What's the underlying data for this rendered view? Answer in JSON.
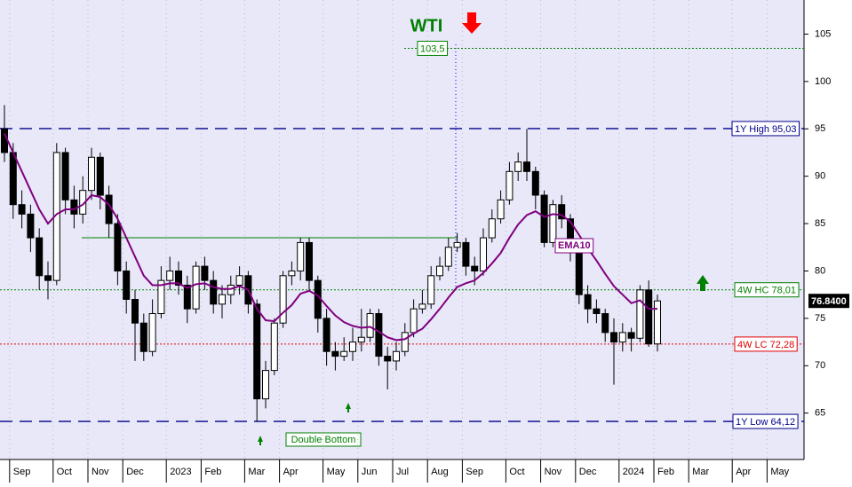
{
  "chart_data": {
    "type": "candlestick",
    "title": "WTI",
    "categories": [
      null,
      "Sep",
      null,
      null,
      null,
      null,
      "Oct",
      null,
      null,
      null,
      "Nov",
      null,
      null,
      null,
      "Dec",
      null,
      null,
      null,
      null,
      "2023",
      null,
      null,
      null,
      "Feb",
      null,
      null,
      null,
      null,
      "Mar",
      null,
      null,
      null,
      "Apr",
      null,
      null,
      null,
      null,
      "May",
      null,
      null,
      null,
      "Jun",
      null,
      null,
      null,
      "Jul",
      null,
      null,
      null,
      "Aug",
      null,
      null,
      null,
      "Sep",
      null,
      null,
      null,
      null,
      "Oct",
      null,
      null,
      null,
      "Nov",
      null,
      null,
      null,
      "Dec",
      null,
      null,
      null,
      null,
      "2024",
      null,
      null,
      null,
      "Feb",
      null,
      null,
      null,
      "Mar",
      null,
      null,
      null,
      null,
      "Apr",
      null,
      null,
      null,
      "May",
      null,
      null,
      null
    ],
    "open": [
      95.0,
      92.5,
      87.0,
      86.0,
      83.5,
      79.5,
      79.0,
      92.5,
      87.5,
      86.0,
      88.5,
      92.0,
      88.0,
      85.0,
      80.0,
      77.0,
      74.5,
      71.5,
      75.5,
      79.0,
      80.0,
      78.5,
      76.0,
      80.5,
      79.0,
      76.5,
      77.5,
      78.5,
      79.5,
      76.5,
      66.5,
      69.5,
      74.5,
      79.5,
      80.0,
      83.0,
      79.0,
      75.0,
      71.5,
      71.0,
      71.5,
      72.5,
      73.0,
      75.5,
      71.0,
      70.5,
      71.5,
      73.5,
      76.0,
      76.5,
      79.5,
      80.5,
      82.5,
      83.0,
      80.5,
      80.0,
      83.5,
      85.5,
      87.5,
      90.5,
      91.5,
      90.5,
      88.0,
      83.0,
      87.0,
      85.5,
      82.0,
      77.5,
      76.0,
      75.5,
      73.5,
      72.5,
      73.5,
      72.9,
      78.0,
      72.3,
      null,
      null,
      null,
      null,
      null,
      null,
      null,
      null,
      null,
      null,
      null,
      null,
      null,
      null,
      null,
      null
    ],
    "high": [
      97.5,
      93.5,
      88.5,
      87.0,
      84.5,
      81.0,
      93.5,
      93.0,
      89.0,
      90.0,
      93.0,
      92.5,
      89.0,
      86.0,
      81.0,
      78.0,
      75.5,
      77.0,
      80.5,
      81.5,
      81.0,
      79.5,
      81.0,
      81.5,
      80.0,
      78.5,
      79.5,
      80.5,
      80.0,
      77.0,
      70.5,
      75.0,
      80.0,
      81.0,
      83.5,
      83.5,
      79.5,
      76.0,
      72.5,
      73.0,
      74.0,
      76.0,
      76.0,
      76.0,
      72.0,
      72.5,
      74.5,
      77.0,
      78.0,
      80.5,
      81.5,
      83.5,
      84.0,
      83.5,
      81.5,
      84.5,
      86.5,
      88.5,
      91.5,
      92.5,
      95.0,
      91.0,
      88.5,
      87.5,
      88.0,
      86.0,
      82.5,
      78.5,
      77.0,
      76.0,
      75.0,
      74.5,
      74.0,
      78.5,
      79.0,
      77.5,
      null,
      null,
      null,
      null,
      null,
      null,
      null,
      null,
      null,
      null,
      null,
      null,
      null,
      null,
      null,
      null
    ],
    "low": [
      91.5,
      85.5,
      84.5,
      82.0,
      78.0,
      77.0,
      78.5,
      86.0,
      84.5,
      85.0,
      87.5,
      86.5,
      83.5,
      78.5,
      75.5,
      70.5,
      70.5,
      71.0,
      75.0,
      78.0,
      77.5,
      74.5,
      75.5,
      78.0,
      75.5,
      75.0,
      76.5,
      77.5,
      75.5,
      64.1,
      65.5,
      69.0,
      74.0,
      78.5,
      79.0,
      78.0,
      73.5,
      70.0,
      69.5,
      70.5,
      70.5,
      71.5,
      72.5,
      70.0,
      67.5,
      69.5,
      71.0,
      73.0,
      75.5,
      76.0,
      79.0,
      80.0,
      82.0,
      79.5,
      78.5,
      79.5,
      83.0,
      85.0,
      87.0,
      89.5,
      89.5,
      86.5,
      82.5,
      82.5,
      84.5,
      81.0,
      76.5,
      74.5,
      74.5,
      72.5,
      68.0,
      71.5,
      71.5,
      72.5,
      72.0,
      71.5,
      null,
      null,
      null,
      null,
      null,
      null,
      null,
      null,
      null,
      null,
      null,
      null,
      null,
      null,
      null,
      null
    ],
    "close": [
      92.5,
      87.0,
      86.0,
      83.5,
      79.5,
      79.0,
      92.5,
      87.5,
      86.0,
      88.5,
      92.0,
      88.0,
      85.0,
      80.0,
      77.0,
      74.5,
      71.5,
      75.5,
      79.0,
      80.0,
      78.5,
      76.0,
      80.5,
      79.0,
      76.5,
      77.5,
      78.5,
      79.5,
      76.5,
      66.5,
      69.5,
      74.5,
      79.5,
      80.0,
      83.0,
      79.0,
      75.0,
      71.5,
      71.0,
      71.5,
      72.5,
      73.0,
      75.5,
      71.0,
      70.5,
      71.5,
      73.5,
      76.0,
      76.5,
      79.5,
      80.5,
      82.5,
      83.0,
      80.5,
      80.0,
      83.5,
      85.5,
      87.5,
      90.5,
      91.5,
      90.5,
      88.0,
      83.0,
      87.0,
      85.5,
      82.0,
      77.5,
      76.0,
      75.5,
      73.5,
      72.5,
      73.5,
      72.9,
      78.0,
      72.3,
      76.84,
      null,
      null,
      null,
      null,
      null,
      null,
      null,
      null,
      null,
      null,
      null,
      null,
      null,
      null,
      null,
      null
    ],
    "up_color": "#ffffff",
    "down_color": "#000000",
    "ema": {
      "name": "EMA10",
      "color": "#800080",
      "values": [
        94.5,
        92.5,
        90.5,
        88.5,
        86.5,
        85.0,
        86.0,
        86.5,
        86.5,
        87.0,
        88.0,
        87.8,
        87.0,
        85.5,
        83.5,
        81.5,
        79.5,
        78.5,
        78.5,
        78.7,
        78.7,
        78.2,
        78.6,
        78.7,
        78.3,
        78.1,
        78.1,
        78.4,
        78.0,
        76.0,
        74.8,
        74.7,
        75.6,
        76.4,
        77.6,
        77.9,
        77.4,
        76.3,
        75.3,
        74.6,
        74.2,
        74.0,
        74.1,
        73.6,
        73.0,
        72.7,
        72.8,
        73.4,
        73.9,
        74.9,
        76.0,
        77.2,
        78.3,
        78.7,
        79.0,
        79.8,
        80.8,
        81.9,
        83.5,
        84.9,
        85.9,
        86.3,
        85.7,
        86.0,
        85.9,
        85.2,
        83.8,
        82.4,
        81.1,
        79.7,
        78.4,
        77.5,
        76.6,
        76.9,
        76.0,
        76.0,
        null,
        null,
        null,
        null,
        null,
        null,
        null,
        null,
        null,
        null,
        null,
        null,
        null,
        null,
        null,
        null
      ]
    },
    "levels": [
      {
        "label": "103,5",
        "value": 103.5,
        "color": "#008000",
        "style": "dot"
      },
      {
        "label": "1Y High 95,03",
        "value": 95.03,
        "color": "#00008b",
        "style": "dash"
      },
      {
        "label": "4W HC 78,01",
        "value": 78.01,
        "color": "#008000",
        "style": "dot"
      },
      {
        "label": "4W LC 72,28",
        "value": 72.28,
        "color": "#e00000",
        "style": "dot"
      },
      {
        "label": "1Y Low 64,12",
        "value": 64.12,
        "color": "#00008b",
        "style": "dash"
      }
    ],
    "last_price": {
      "label": "76.8400",
      "value": 76.84
    },
    "annotations": [
      "Double Bottom"
    ],
    "ylim": [
      60.1,
      108.6
    ],
    "yticks": [
      65,
      70,
      75,
      80,
      85,
      90,
      95,
      100,
      105
    ],
    "grid": true
  }
}
